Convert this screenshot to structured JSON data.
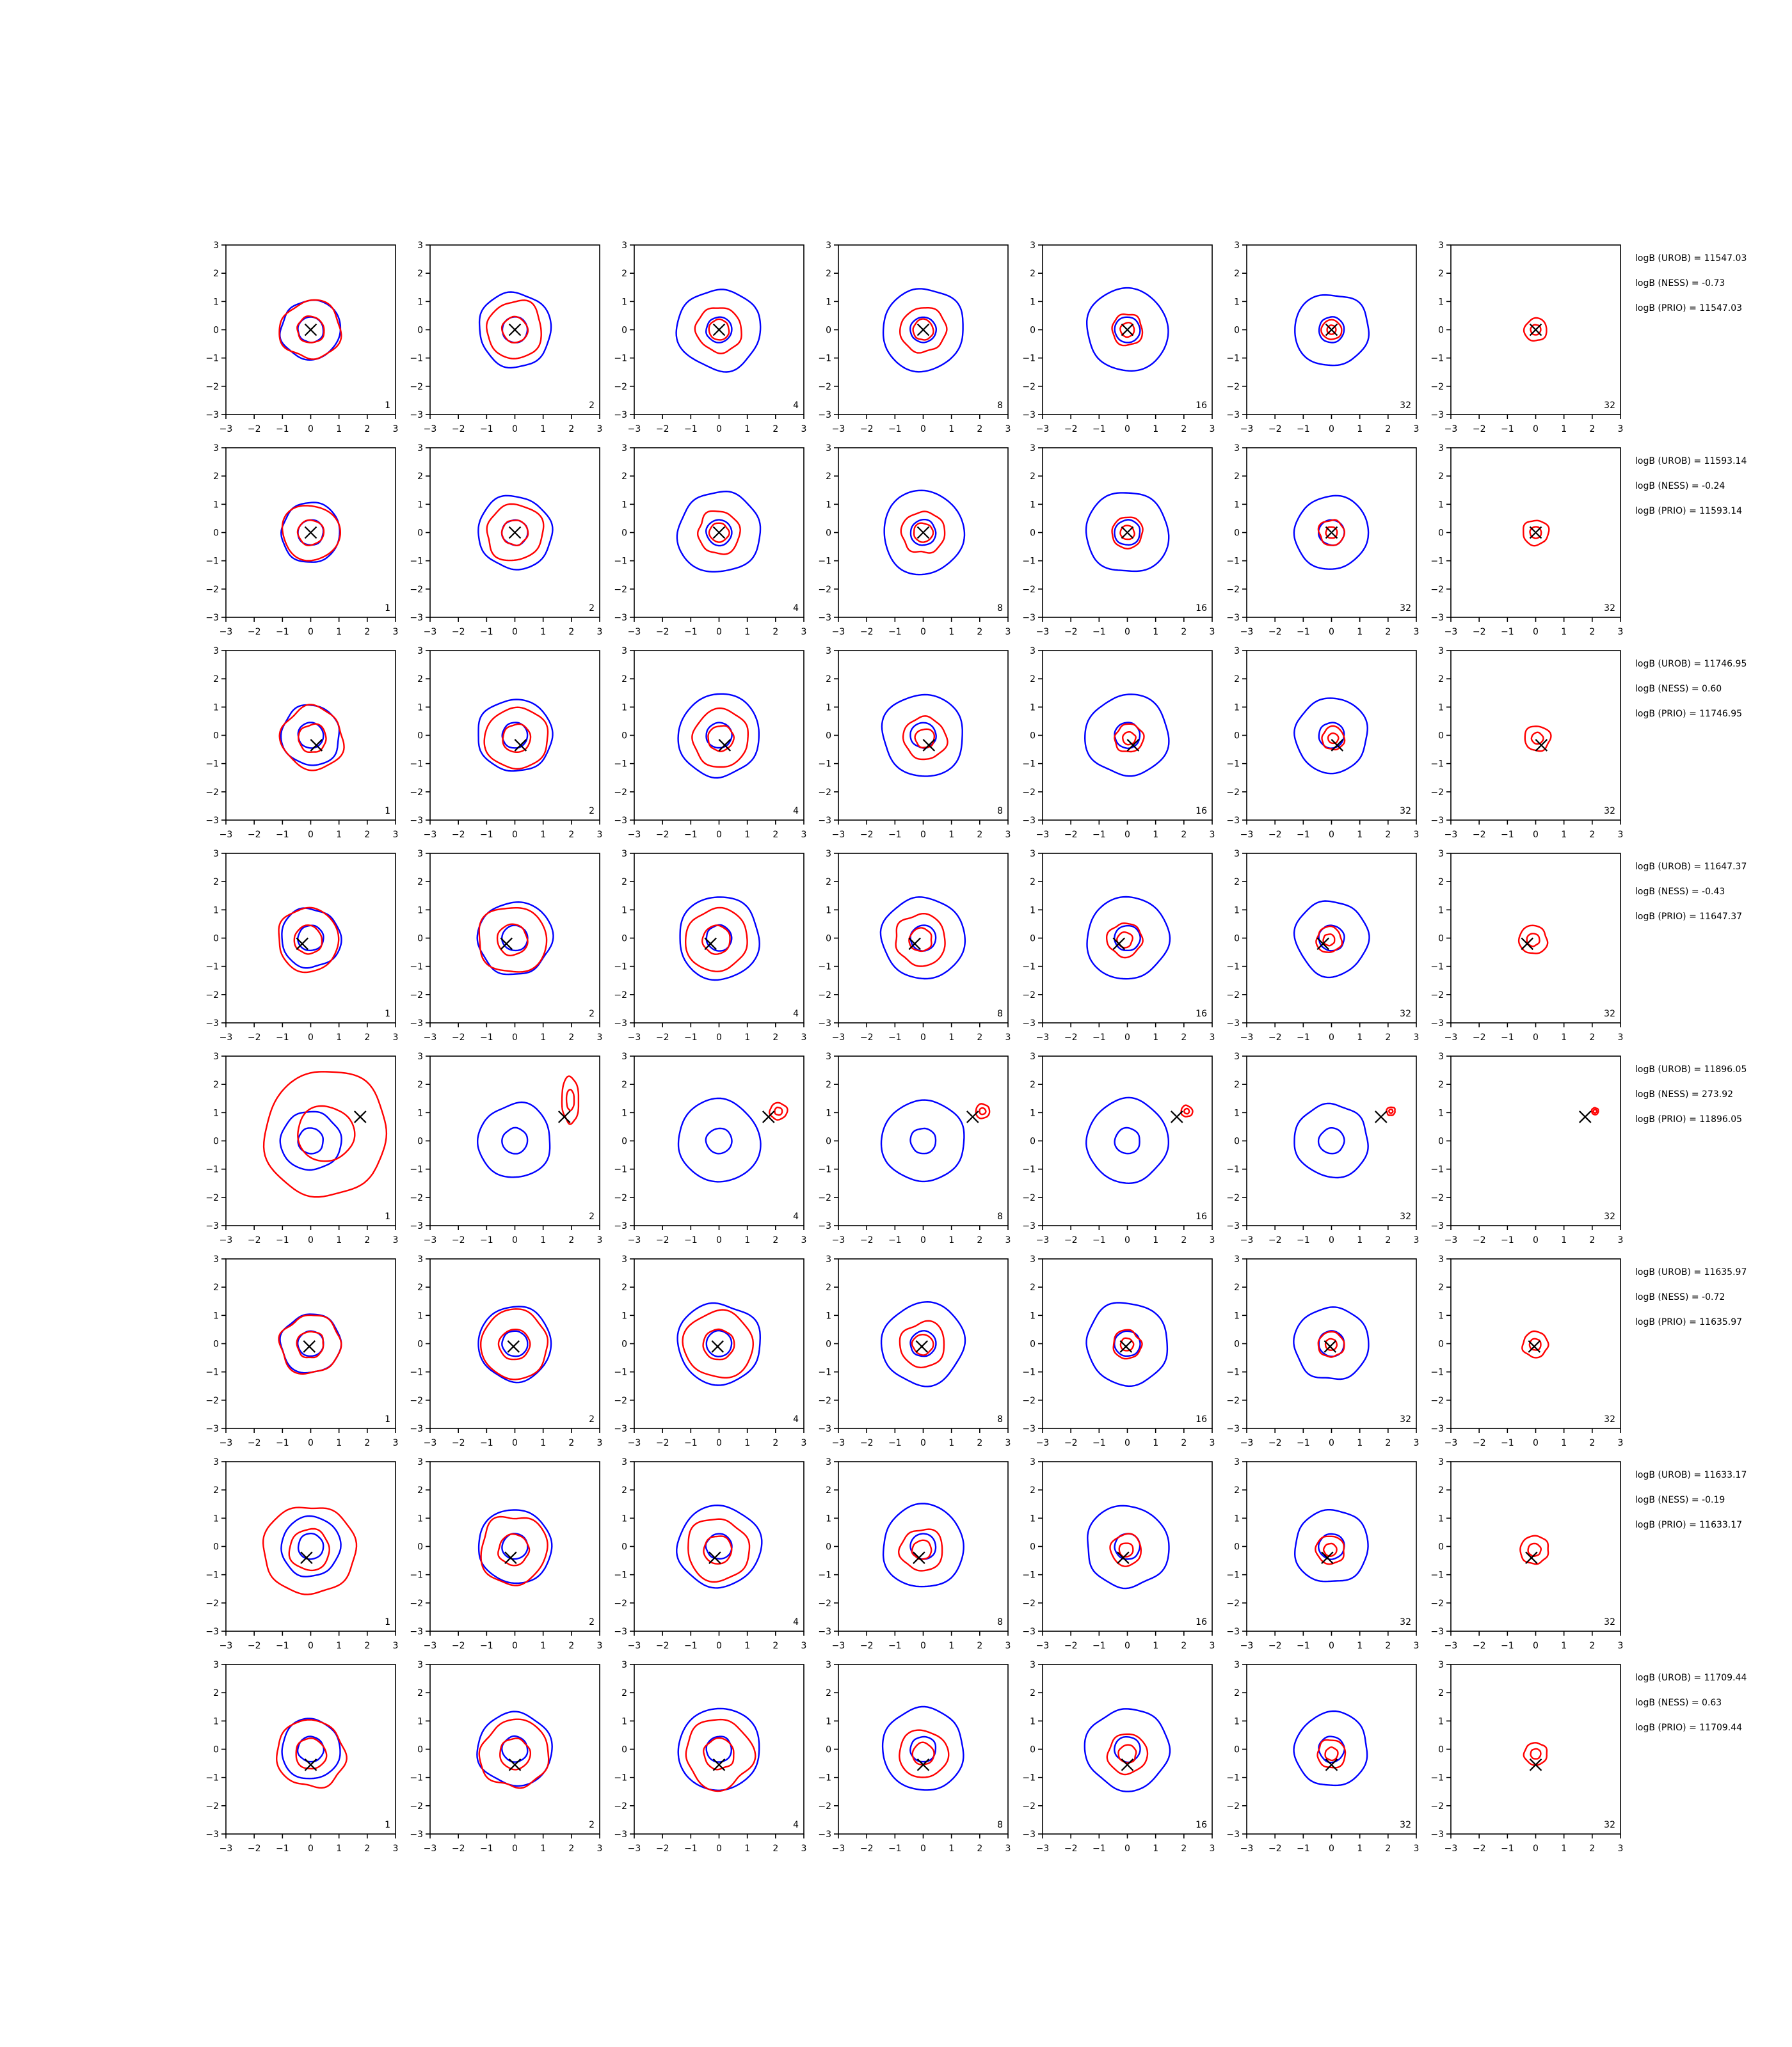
{
  "chart_data": {
    "type": "contour",
    "layout": "8 rows x 7 columns of 2D contour panels",
    "xlim": [
      -3,
      3
    ],
    "ylim": [
      -3,
      3
    ],
    "ticks": [
      -3,
      -2,
      -1,
      0,
      1,
      2,
      3
    ],
    "tick_labels": [
      "−3",
      "−2",
      "−1",
      "0",
      "1",
      "2",
      "3"
    ],
    "column_labels": [
      "1",
      "2",
      "4",
      "8",
      "16",
      "32",
      "32"
    ],
    "colors": {
      "reference": "#0000ff",
      "estimate": "#ff0000",
      "marker": "#000000"
    },
    "reference_outer_radius_by_column": [
      1.05,
      1.3,
      1.45,
      1.45,
      1.45,
      1.3,
      0
    ],
    "reference_inner_radius_by_column": [
      0.45,
      0.45,
      0.45,
      0.45,
      0.45,
      0.45,
      0
    ],
    "rows": [
      {
        "marker": [
          0.0,
          0.0
        ],
        "stats": [
          "logB (UROB) = 11547.03",
          "logB (NESS) = -0.73",
          "logB (PRIO) = 11547.03"
        ],
        "red_outer_radius": [
          1.05,
          1.0,
          0.8,
          0.8,
          0.55,
          0.35,
          0.4
        ]
      },
      {
        "marker": [
          0.0,
          0.0
        ],
        "stats": [
          "logB (UROB) = 11593.14",
          "logB (NESS) = -0.24",
          "logB (PRIO) = 11593.14"
        ],
        "red_outer_radius": [
          1.0,
          1.0,
          0.75,
          0.75,
          0.55,
          0.45,
          0.45
        ]
      },
      {
        "marker": [
          0.2,
          -0.35
        ],
        "stats": [
          "logB (UROB) = 11746.95",
          "logB (NESS) = 0.60",
          "logB (PRIO) = 11746.95"
        ],
        "red_outer_radius": [
          1.1,
          1.1,
          1.0,
          0.75,
          0.5,
          0.4,
          0.45
        ]
      },
      {
        "marker": [
          -0.3,
          -0.2
        ],
        "stats": [
          "logB (UROB) = 11647.37",
          "logB (NESS) = -0.43",
          "logB (PRIO) = 11647.37"
        ],
        "red_outer_radius": [
          1.1,
          1.2,
          1.1,
          0.9,
          0.6,
          0.45,
          0.5
        ]
      },
      {
        "marker": [
          1.75,
          0.85
        ],
        "stats": [
          "logB (UROB) = 11896.05",
          "logB (NESS) = 273.92",
          "logB (PRIO) = 11896.05"
        ],
        "red_outer_radius": [
          2.2,
          0.55,
          0.3,
          0.25,
          0.2,
          0.15,
          0.12
        ]
      },
      {
        "marker": [
          -0.05,
          -0.1
        ],
        "stats": [
          "logB (UROB) = 11635.97",
          "logB (NESS) = -0.72",
          "logB (PRIO) = 11635.97"
        ],
        "red_outer_radius": [
          1.05,
          1.2,
          1.2,
          0.8,
          0.5,
          0.45,
          0.45
        ]
      },
      {
        "marker": [
          -0.15,
          -0.4
        ],
        "stats": [
          "logB (UROB) = 11633.17",
          "logB (NESS) = -0.19",
          "logB (PRIO) = 11633.17"
        ],
        "red_outer_radius": [
          1.6,
          1.2,
          1.1,
          0.75,
          0.55,
          0.5,
          0.5
        ]
      },
      {
        "marker": [
          0.0,
          -0.55
        ],
        "stats": [
          "logB (UROB) = 11709.44",
          "logB (NESS) = 0.63",
          "logB (PRIO) = 11709.44"
        ],
        "red_outer_radius": [
          1.2,
          1.2,
          1.2,
          0.85,
          0.7,
          0.5,
          0.4
        ]
      }
    ]
  }
}
